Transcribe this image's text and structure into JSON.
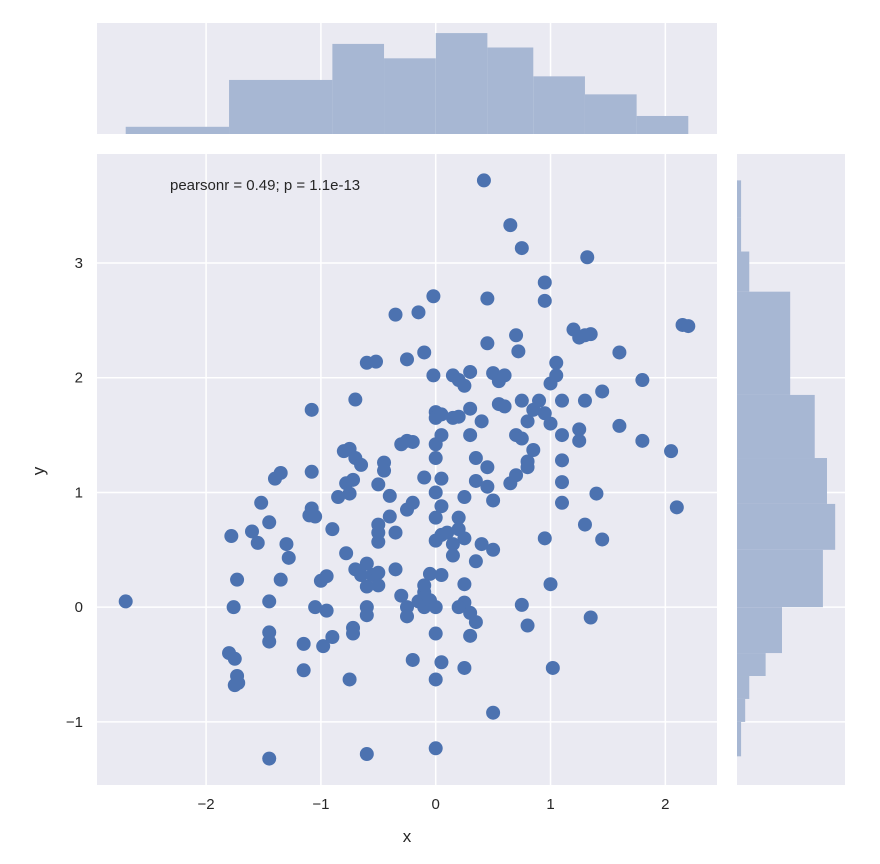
{
  "chart_data": {
    "type": "scatter",
    "kind": "jointplot",
    "xlabel": "x",
    "ylabel": "y",
    "annotation": "pearsonr = 0.49; p = 1.1e-13",
    "xlim": [
      -2.95,
      2.45
    ],
    "ylim": [
      -1.55,
      3.95
    ],
    "x_ticks": [
      -2,
      -1,
      0,
      1,
      2
    ],
    "y_ticks": [
      -1,
      0,
      1,
      2,
      3
    ],
    "grid": true,
    "colors": {
      "background": "#eaeaf2",
      "grid": "#ffffff",
      "points": "#4c72b0",
      "hist_fill": "#a7b7d3",
      "text": "#262626"
    },
    "points": [
      [
        -2.7,
        0.05
      ],
      [
        -1.8,
        -0.4
      ],
      [
        -1.75,
        -0.45
      ],
      [
        -1.73,
        -0.6
      ],
      [
        -1.75,
        -0.68
      ],
      [
        -1.72,
        -0.66
      ],
      [
        -1.78,
        0.62
      ],
      [
        -1.76,
        0.0
      ],
      [
        -1.73,
        0.24
      ],
      [
        -1.6,
        0.66
      ],
      [
        -1.55,
        0.56
      ],
      [
        -1.52,
        0.91
      ],
      [
        -1.45,
        0.74
      ],
      [
        -1.4,
        1.12
      ],
      [
        -1.35,
        1.17
      ],
      [
        -1.35,
        0.24
      ],
      [
        -1.3,
        0.55
      ],
      [
        -1.28,
        0.43
      ],
      [
        -1.45,
        0.05
      ],
      [
        -1.45,
        -0.22
      ],
      [
        -1.45,
        -0.3
      ],
      [
        -1.15,
        -0.32
      ],
      [
        -1.15,
        -0.55
      ],
      [
        -1.1,
        0.8
      ],
      [
        -1.08,
        0.86
      ],
      [
        -1.05,
        0.79
      ],
      [
        -1.08,
        1.18
      ],
      [
        -1.08,
        1.72
      ],
      [
        -1.05,
        0.0
      ],
      [
        -1.0,
        0.23
      ],
      [
        -0.98,
        -0.34
      ],
      [
        -0.95,
        -0.03
      ],
      [
        -0.9,
        -0.26
      ],
      [
        -0.95,
        0.27
      ],
      [
        -0.9,
        0.68
      ],
      [
        -0.85,
        0.96
      ],
      [
        -0.8,
        1.36
      ],
      [
        -0.75,
        1.38
      ],
      [
        -0.7,
        1.3
      ],
      [
        -0.65,
        1.24
      ],
      [
        -0.78,
        1.08
      ],
      [
        -0.75,
        0.99
      ],
      [
        -0.72,
        1.11
      ],
      [
        -0.78,
        0.47
      ],
      [
        -0.7,
        0.33
      ],
      [
        -0.65,
        0.28
      ],
      [
        -0.6,
        0.18
      ],
      [
        -0.72,
        -0.18
      ],
      [
        -0.72,
        -0.23
      ],
      [
        -0.75,
        -0.63
      ],
      [
        -0.7,
        1.81
      ],
      [
        -0.6,
        0.38
      ],
      [
        -0.6,
        0.0
      ],
      [
        -0.6,
        -0.07
      ],
      [
        -0.55,
        0.28
      ],
      [
        -0.5,
        0.3
      ],
      [
        -0.5,
        0.19
      ],
      [
        -0.5,
        0.57
      ],
      [
        -0.5,
        0.65
      ],
      [
        -0.5,
        0.72
      ],
      [
        -0.5,
        1.07
      ],
      [
        -0.45,
        1.26
      ],
      [
        -0.45,
        1.19
      ],
      [
        -0.4,
        0.79
      ],
      [
        -0.4,
        0.97
      ],
      [
        -0.35,
        0.65
      ],
      [
        -0.35,
        0.33
      ],
      [
        -0.3,
        0.1
      ],
      [
        -0.3,
        1.42
      ],
      [
        -0.25,
        1.45
      ],
      [
        -0.2,
        1.44
      ],
      [
        -0.25,
        0.85
      ],
      [
        -0.2,
        0.91
      ],
      [
        -0.25,
        0.0
      ],
      [
        -0.25,
        -0.08
      ],
      [
        -0.2,
        -0.46
      ],
      [
        -0.15,
        0.05
      ],
      [
        -0.1,
        0.13
      ],
      [
        -0.1,
        0.19
      ],
      [
        -0.1,
        0.0
      ],
      [
        -0.1,
        1.13
      ],
      [
        -0.05,
        0.29
      ],
      [
        -0.05,
        0.06
      ],
      [
        -0.6,
        2.13
      ],
      [
        -0.52,
        2.14
      ],
      [
        -0.35,
        2.55
      ],
      [
        -0.25,
        2.16
      ],
      [
        -0.15,
        2.57
      ],
      [
        -0.1,
        2.22
      ],
      [
        -0.02,
        2.71
      ],
      [
        -0.02,
        2.02
      ],
      [
        0.0,
        1.7
      ],
      [
        0.0,
        1.65
      ],
      [
        0.05,
        1.68
      ],
      [
        0.0,
        1.42
      ],
      [
        0.05,
        1.5
      ],
      [
        0.0,
        1.3
      ],
      [
        0.05,
        1.12
      ],
      [
        0.0,
        1.0
      ],
      [
        0.05,
        0.88
      ],
      [
        0.0,
        0.78
      ],
      [
        0.0,
        0.58
      ],
      [
        0.05,
        0.63
      ],
      [
        0.05,
        0.28
      ],
      [
        0.0,
        0.0
      ],
      [
        0.0,
        -0.23
      ],
      [
        0.05,
        -0.48
      ],
      [
        0.0,
        -0.63
      ],
      [
        0.0,
        -1.23
      ],
      [
        0.15,
        2.02
      ],
      [
        0.2,
        1.98
      ],
      [
        0.25,
        1.93
      ],
      [
        0.3,
        2.05
      ],
      [
        0.15,
        1.65
      ],
      [
        0.2,
        1.66
      ],
      [
        0.3,
        1.73
      ],
      [
        0.3,
        1.5
      ],
      [
        0.35,
        1.3
      ],
      [
        0.35,
        1.1
      ],
      [
        0.25,
        0.96
      ],
      [
        0.2,
        0.78
      ],
      [
        0.1,
        0.65
      ],
      [
        0.15,
        0.55
      ],
      [
        0.2,
        0.68
      ],
      [
        0.25,
        0.6
      ],
      [
        0.15,
        0.45
      ],
      [
        0.25,
        0.2
      ],
      [
        0.25,
        0.04
      ],
      [
        0.3,
        -0.05
      ],
      [
        0.35,
        -0.13
      ],
      [
        0.3,
        -0.25
      ],
      [
        0.2,
        0.0
      ],
      [
        0.25,
        -0.53
      ],
      [
        0.35,
        0.4
      ],
      [
        0.4,
        0.55
      ],
      [
        0.4,
        1.62
      ],
      [
        0.45,
        1.22
      ],
      [
        0.45,
        1.05
      ],
      [
        0.45,
        2.3
      ],
      [
        0.5,
        2.04
      ],
      [
        0.55,
        1.97
      ],
      [
        0.55,
        1.77
      ],
      [
        0.6,
        1.75
      ],
      [
        0.5,
        0.93
      ],
      [
        0.5,
        0.5
      ],
      [
        0.5,
        -0.92
      ],
      [
        0.42,
        3.72
      ],
      [
        0.65,
        3.33
      ],
      [
        0.75,
        3.13
      ],
      [
        0.6,
        2.02
      ],
      [
        0.7,
        2.37
      ],
      [
        0.72,
        2.23
      ],
      [
        0.7,
        1.5
      ],
      [
        0.75,
        1.8
      ],
      [
        0.7,
        1.15
      ],
      [
        0.65,
        1.08
      ],
      [
        0.75,
        1.47
      ],
      [
        0.8,
        1.27
      ],
      [
        0.8,
        1.22
      ],
      [
        0.8,
        1.62
      ],
      [
        0.85,
        1.72
      ],
      [
        0.85,
        1.37
      ],
      [
        0.9,
        1.8
      ],
      [
        0.95,
        1.69
      ],
      [
        0.95,
        0.6
      ],
      [
        0.75,
        0.02
      ],
      [
        0.8,
        -0.16
      ],
      [
        1.0,
        1.6
      ],
      [
        1.0,
        1.95
      ],
      [
        1.0,
        0.2
      ],
      [
        0.95,
        2.83
      ],
      [
        0.95,
        2.67
      ],
      [
        1.05,
        2.02
      ],
      [
        1.05,
        2.13
      ],
      [
        1.1,
        1.8
      ],
      [
        1.1,
        1.5
      ],
      [
        1.1,
        1.28
      ],
      [
        1.1,
        1.09
      ],
      [
        1.1,
        0.91
      ],
      [
        1.2,
        2.42
      ],
      [
        1.25,
        2.35
      ],
      [
        1.3,
        2.37
      ],
      [
        1.35,
        2.38
      ],
      [
        1.3,
        1.8
      ],
      [
        1.25,
        1.55
      ],
      [
        1.25,
        1.45
      ],
      [
        1.3,
        0.72
      ],
      [
        1.35,
        -0.09
      ],
      [
        1.4,
        0.99
      ],
      [
        1.45,
        1.88
      ],
      [
        1.45,
        0.59
      ],
      [
        1.6,
        2.22
      ],
      [
        1.6,
        1.58
      ],
      [
        1.8,
        1.98
      ],
      [
        1.8,
        1.45
      ],
      [
        2.05,
        1.36
      ],
      [
        2.1,
        0.87
      ],
      [
        2.15,
        2.46
      ],
      [
        2.2,
        2.45
      ],
      [
        1.02,
        -0.53
      ],
      [
        1.32,
        3.05
      ],
      [
        -1.45,
        -1.32
      ],
      [
        -0.6,
        -1.28
      ],
      [
        0.45,
        2.69
      ]
    ],
    "x_hist": {
      "bin_edges": [
        -2.7,
        -1.8,
        -0.9,
        -0.45,
        0.0,
        0.45,
        0.85,
        1.3,
        1.75,
        2.2
      ],
      "counts": [
        2,
        15,
        25,
        21,
        28,
        24,
        16,
        11,
        5
      ]
    },
    "y_hist": {
      "bin_edges": [
        -1.3,
        -1.0,
        -0.8,
        -0.6,
        -0.4,
        0.0,
        0.5,
        0.9,
        1.3,
        1.85,
        2.75,
        3.1,
        3.4,
        3.72
      ],
      "counts": [
        1,
        2,
        3,
        7,
        11,
        21,
        24,
        22,
        19,
        13,
        3,
        1,
        1
      ]
    }
  }
}
